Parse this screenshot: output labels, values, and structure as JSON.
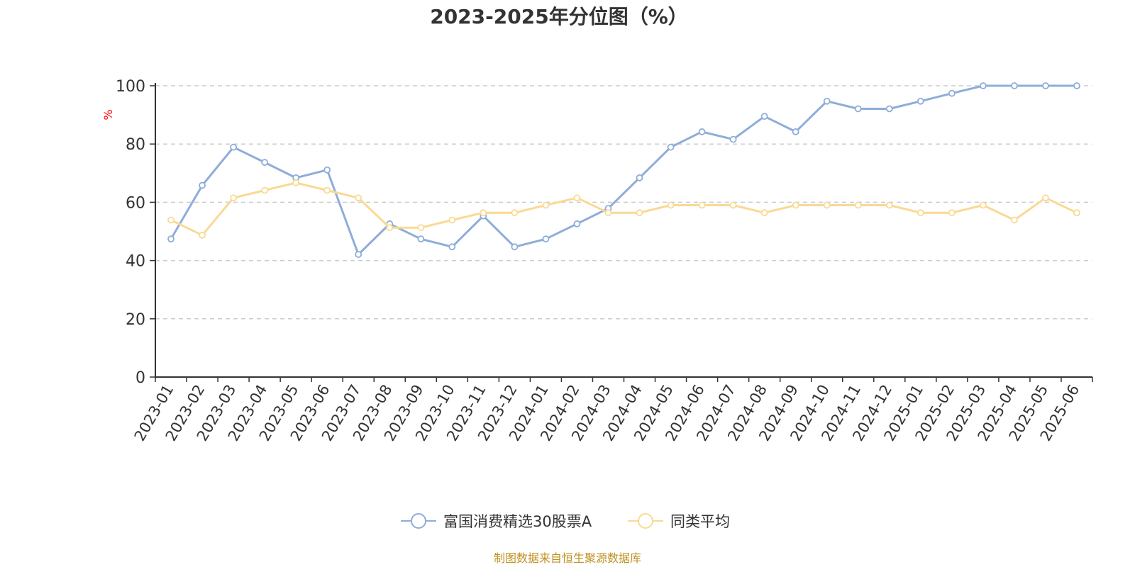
{
  "chart_data": {
    "type": "line",
    "title": "2023-2025年分位图（%）",
    "ylabel": "%",
    "ylim": [
      0,
      100
    ],
    "yticks": [
      0,
      20,
      40,
      60,
      80,
      100
    ],
    "grid": true,
    "legend_position": "bottom",
    "categories": [
      "2023-01",
      "2023-02",
      "2023-03",
      "2023-04",
      "2023-05",
      "2023-06",
      "2023-07",
      "2023-08",
      "2023-09",
      "2023-10",
      "2023-11",
      "2023-12",
      "2024-01",
      "2024-02",
      "2024-03",
      "2024-04",
      "2024-05",
      "2024-06",
      "2024-07",
      "2024-08",
      "2024-09",
      "2024-10",
      "2024-11",
      "2024-12",
      "2025-01",
      "2025-02",
      "2025-03",
      "2025-04",
      "2025-05",
      "2025-06"
    ],
    "series": [
      {
        "name": "富国消费精选30股票A",
        "color": "#8eadd8",
        "values": [
          47.4,
          65.8,
          78.9,
          73.7,
          68.4,
          71.1,
          42.1,
          52.6,
          47.4,
          44.7,
          55.3,
          44.7,
          47.4,
          52.6,
          57.9,
          68.4,
          78.9,
          84.2,
          81.6,
          89.5,
          84.2,
          94.7,
          92.1,
          92.1,
          94.7,
          97.4,
          100,
          100,
          100,
          100
        ]
      },
      {
        "name": "同类平均",
        "color": "#fad994",
        "values": [
          53.9,
          48.7,
          61.5,
          64.1,
          66.7,
          64.1,
          61.5,
          51.3,
          51.3,
          53.9,
          56.4,
          56.4,
          59.0,
          61.5,
          56.4,
          56.4,
          59.0,
          59.0,
          59.0,
          56.4,
          59.0,
          59.0,
          59.0,
          59.0,
          56.4,
          56.4,
          59.0,
          53.9,
          61.5,
          56.4
        ]
      }
    ]
  },
  "source": "制图数据来自恒生聚源数据库"
}
